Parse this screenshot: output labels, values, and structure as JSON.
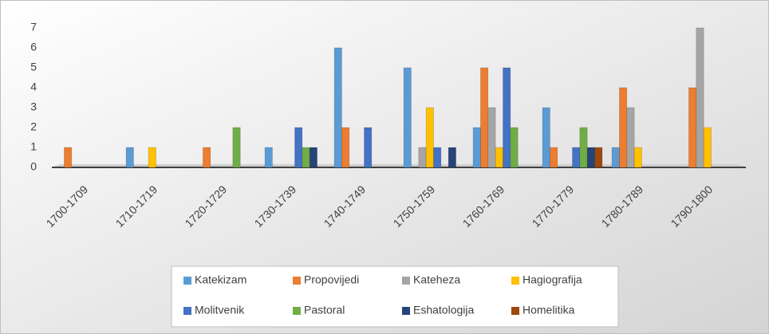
{
  "chart_data": {
    "type": "bar",
    "categories": [
      "1700-1709",
      "1710-1719",
      "1720-1729",
      "1730-1739",
      "1740-1749",
      "1750-1759",
      "1760-1769",
      "1770-1779",
      "1780-1789",
      "1790-1800"
    ],
    "series": [
      {
        "name": "Katekizam",
        "color": "#5b9bd5",
        "values": [
          0,
          1,
          0,
          1,
          6,
          5,
          2,
          3,
          1,
          0
        ]
      },
      {
        "name": "Propovijedi",
        "color": "#ed7d31",
        "values": [
          1,
          0,
          1,
          0,
          2,
          0,
          5,
          1,
          4,
          4
        ]
      },
      {
        "name": "Kateheza",
        "color": "#a5a5a5",
        "values": [
          0,
          0,
          0,
          0,
          0,
          1,
          3,
          0,
          3,
          7
        ]
      },
      {
        "name": "Hagiografija",
        "color": "#ffc000",
        "values": [
          0,
          1,
          0,
          0,
          0,
          3,
          1,
          0,
          1,
          2
        ]
      },
      {
        "name": "Molitvenik",
        "color": "#4472c4",
        "values": [
          0,
          0,
          0,
          2,
          2,
          1,
          5,
          1,
          0,
          0
        ]
      },
      {
        "name": "Pastoral",
        "color": "#70ad47",
        "values": [
          0,
          0,
          2,
          1,
          0,
          0,
          2,
          2,
          0,
          0
        ]
      },
      {
        "name": "Eshatologija",
        "color": "#264478",
        "values": [
          0,
          0,
          0,
          1,
          0,
          1,
          0,
          1,
          0,
          0
        ]
      },
      {
        "name": "Homelitika",
        "color": "#9e480e",
        "values": [
          0,
          0,
          0,
          0,
          0,
          0,
          0,
          1,
          0,
          0
        ]
      }
    ],
    "ylim": [
      0,
      7
    ],
    "yticks": [
      0,
      1,
      2,
      3,
      4,
      5,
      6,
      7
    ],
    "grid": false,
    "legend": "bottom"
  }
}
